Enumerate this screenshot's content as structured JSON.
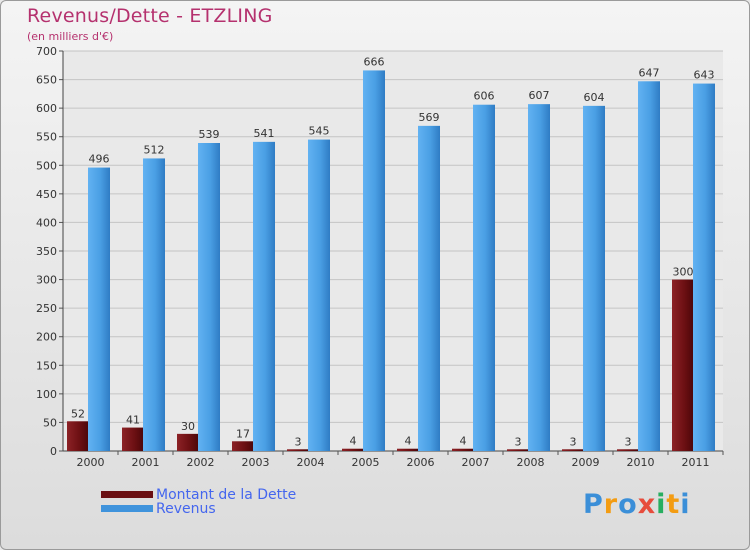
{
  "header": {
    "title": "Revenus/Dette - ETZLING",
    "subtitle": "(en milliers d'€)"
  },
  "chart_data": {
    "type": "bar",
    "categories": [
      "2000",
      "2001",
      "2002",
      "2003",
      "2004",
      "2005",
      "2006",
      "2007",
      "2008",
      "2009",
      "2010",
      "2011"
    ],
    "series": [
      {
        "name": "Montant de la Dette",
        "values": [
          52,
          41,
          30,
          17,
          3,
          4,
          4,
          4,
          3,
          3,
          3,
          300
        ],
        "color": "#7a1416"
      },
      {
        "name": "Revenus",
        "values": [
          496,
          512,
          539,
          541,
          545,
          666,
          569,
          606,
          607,
          604,
          647,
          643
        ],
        "color": "#4aa0e6"
      }
    ],
    "ylim": [
      0,
      700
    ],
    "yticks": [
      0,
      50,
      100,
      150,
      200,
      250,
      300,
      350,
      400,
      450,
      500,
      550,
      600,
      650,
      700
    ],
    "grid": true,
    "legend_position": "bottom-left"
  },
  "legend": {
    "items": [
      {
        "label": "Montant de la Dette",
        "color": "#6a0f12"
      },
      {
        "label": "Revenus",
        "color": "#3f93dc"
      }
    ]
  },
  "logo": {
    "letters": [
      "P",
      "r",
      "o",
      "x",
      "i",
      "t",
      "i"
    ],
    "colors": [
      "#3b8fd8",
      "#f39c12",
      "#3b8fd8",
      "#e74c3c",
      "#27ae60",
      "#f39c12",
      "#3b8fd8"
    ]
  }
}
